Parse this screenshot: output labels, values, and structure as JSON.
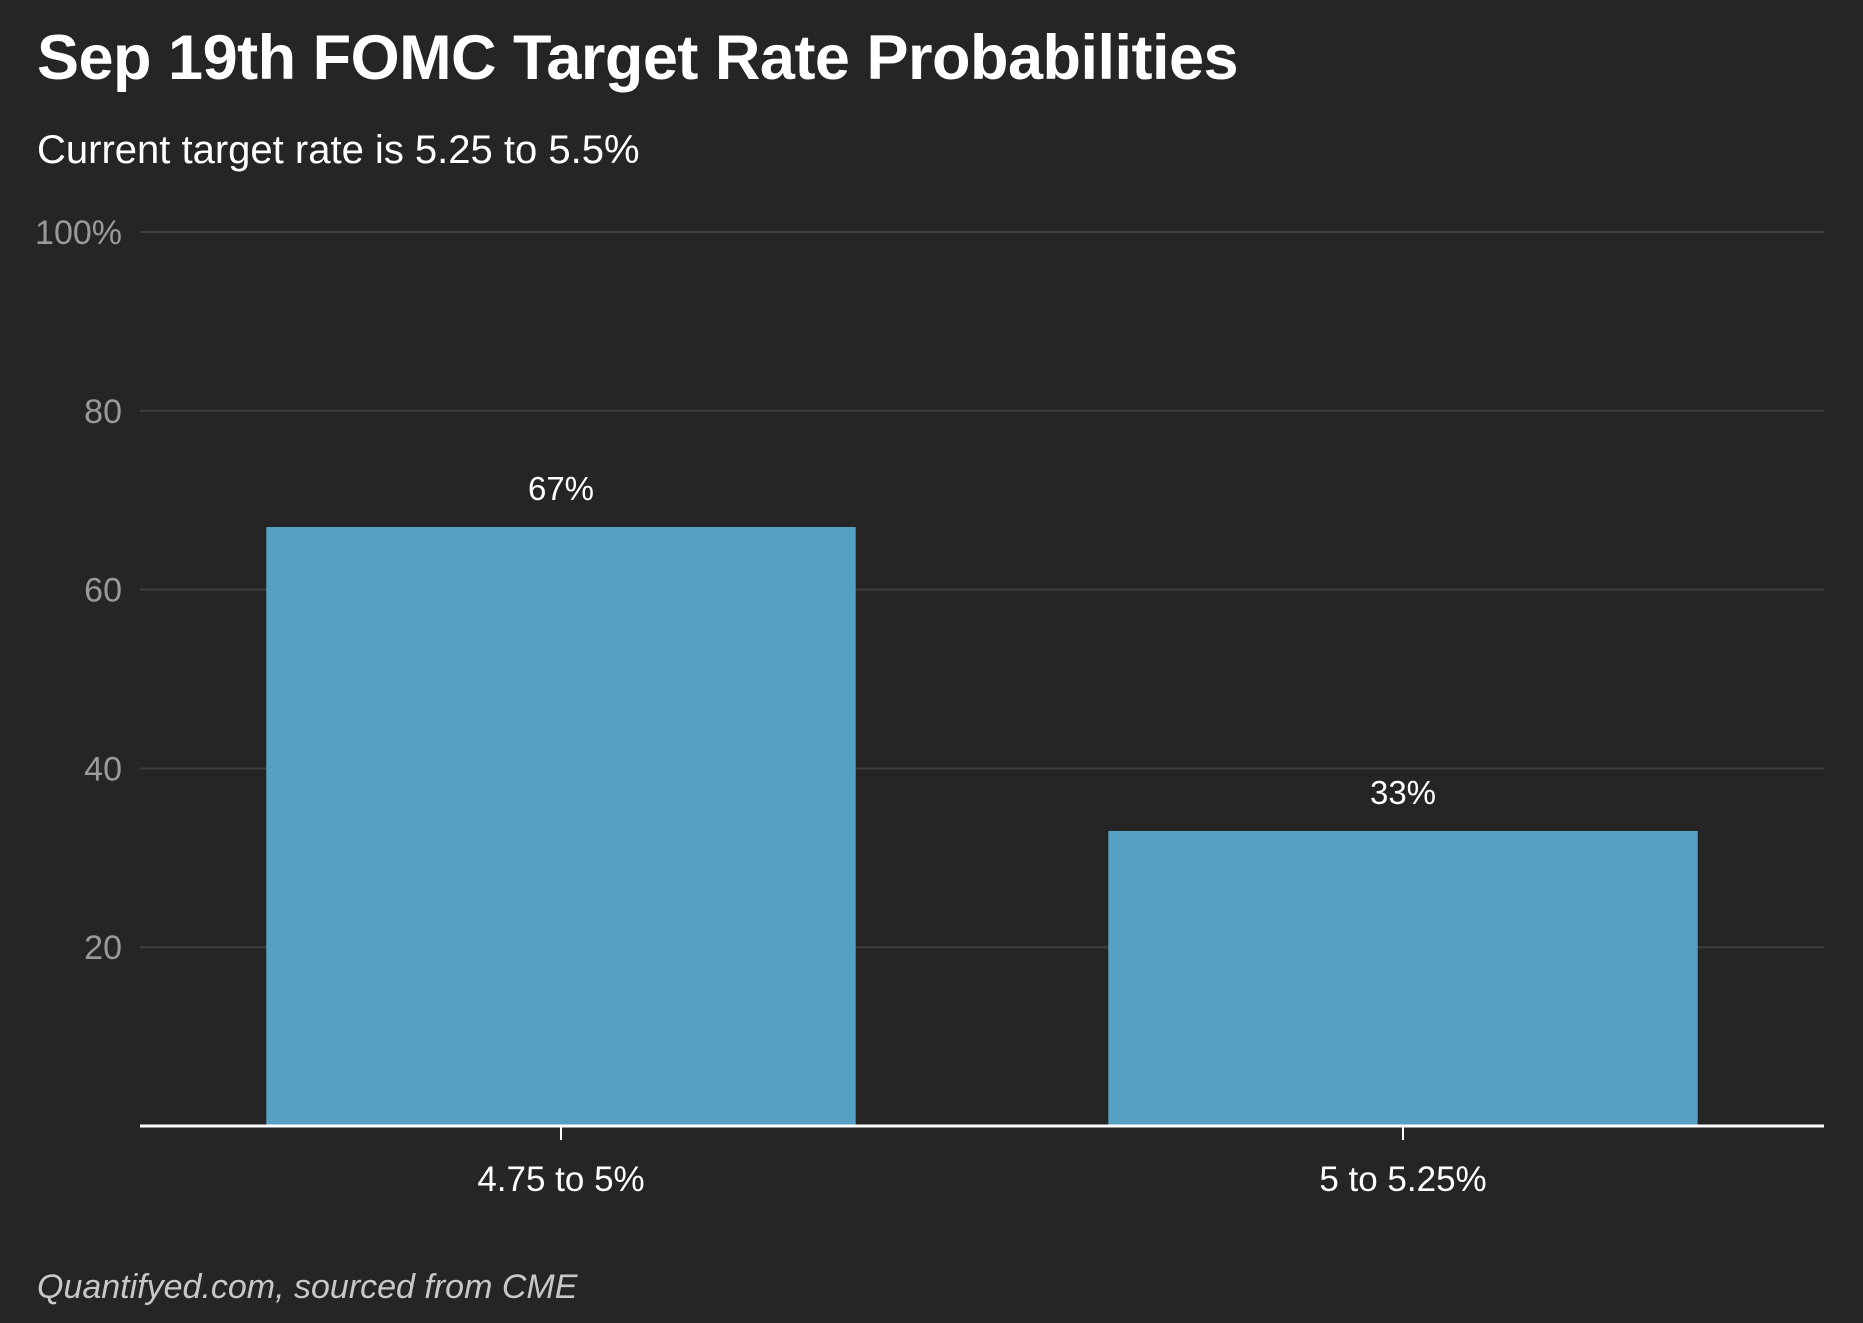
{
  "chart_data": {
    "type": "bar",
    "title": "Sep 19th FOMC Target Rate Probabilities",
    "subtitle": "Current target rate is 5.25 to 5.5%",
    "source": "Quantifyed.com, sourced from CME",
    "categories": [
      "4.75 to 5%",
      "5 to 5.25%"
    ],
    "values": [
      67,
      33
    ],
    "data_labels": [
      "67%",
      "33%"
    ],
    "ylim": [
      0,
      100
    ],
    "yticks": [
      20,
      40,
      60,
      80,
      100
    ],
    "ytick_labels": [
      "20",
      "40",
      "60",
      "80",
      "100%"
    ],
    "grid": true,
    "legend": "none",
    "colors": {
      "bar": "#56a1c3",
      "background": "#252525",
      "grid": "#3f3f3f",
      "axis": "#ffffff"
    }
  }
}
